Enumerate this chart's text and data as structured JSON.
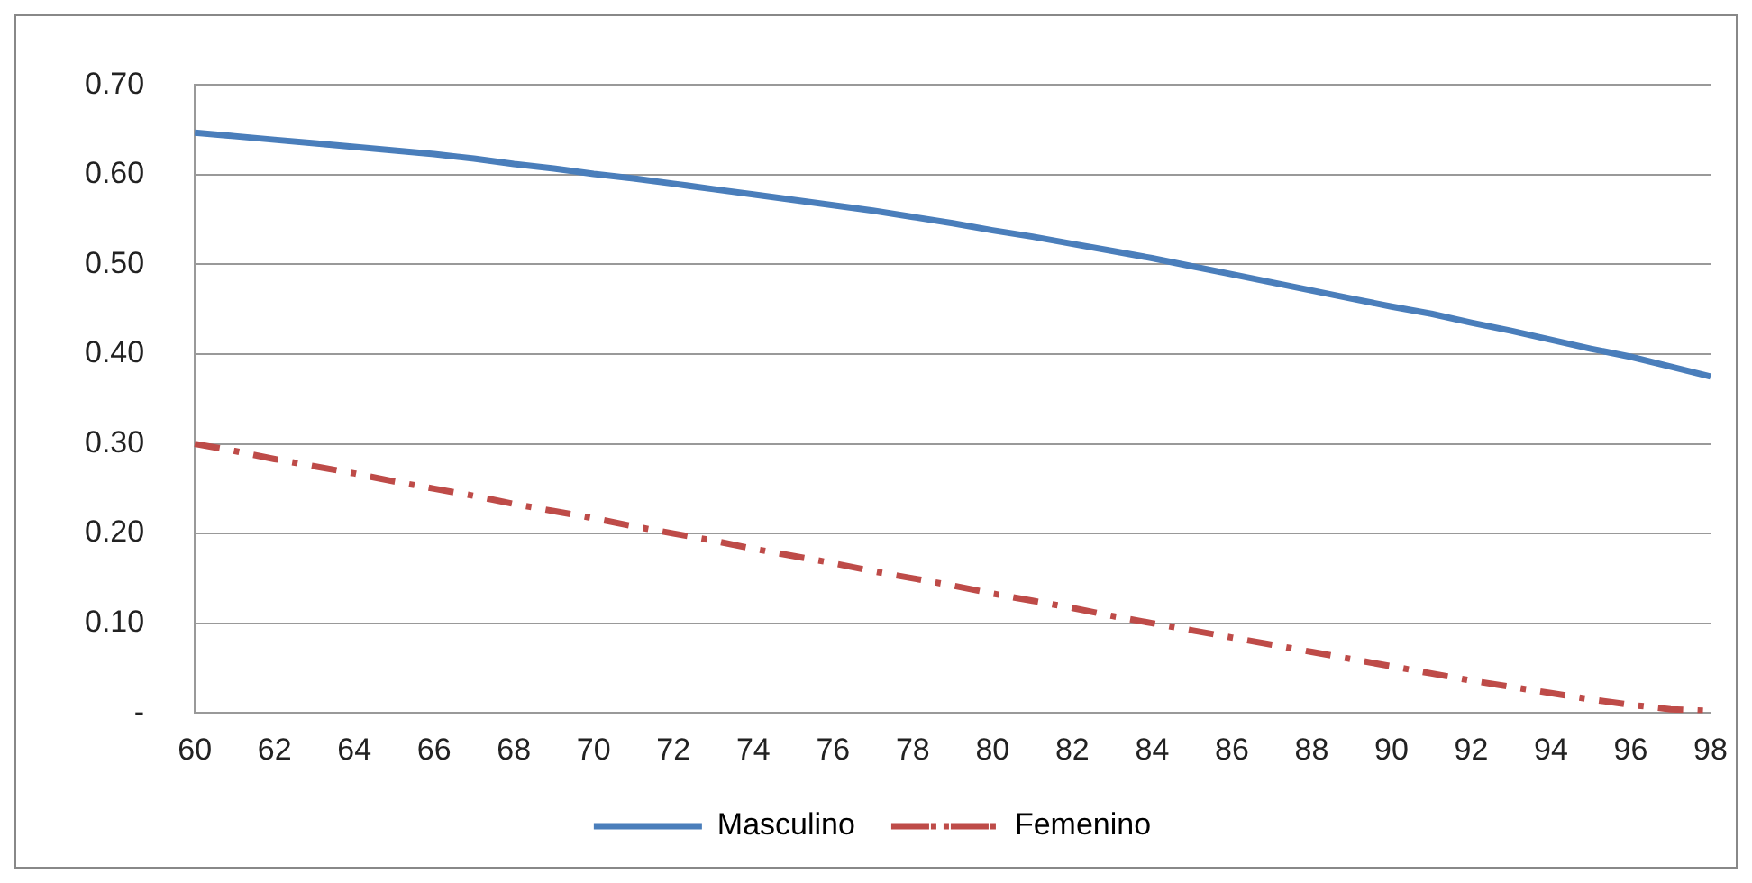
{
  "chart_data": {
    "type": "line",
    "categories": [
      "60",
      null,
      "62",
      null,
      "64",
      null,
      "66",
      null,
      "68",
      null,
      "70",
      null,
      "72",
      null,
      "74",
      null,
      "76",
      null,
      "78",
      null,
      "80",
      null,
      "82",
      null,
      "84",
      null,
      "86",
      null,
      "88",
      null,
      "90",
      null,
      "92",
      null,
      "94",
      null,
      "96",
      null,
      "98"
    ],
    "series": [
      {
        "name": "Masculino",
        "color": "#4a7ebb",
        "line_style": "solid",
        "values": [
          0.647,
          0.643,
          0.639,
          0.635,
          0.631,
          0.627,
          0.623,
          0.618,
          0.612,
          0.607,
          0.601,
          0.596,
          0.59,
          0.584,
          0.578,
          0.572,
          0.566,
          0.56,
          0.553,
          0.546,
          0.538,
          0.531,
          0.523,
          0.515,
          0.507,
          0.498,
          0.489,
          0.48,
          0.471,
          0.462,
          0.453,
          0.445,
          0.435,
          0.426,
          0.416,
          0.406,
          0.397,
          0.386,
          0.375
        ]
      },
      {
        "name": "Femenino",
        "color": "#be4b48",
        "line_style": "dashed",
        "values": [
          0.3,
          0.292,
          0.283,
          0.275,
          0.267,
          0.258,
          0.25,
          0.242,
          0.233,
          0.225,
          0.217,
          0.208,
          0.2,
          0.192,
          0.183,
          0.175,
          0.167,
          0.158,
          0.15,
          0.142,
          0.133,
          0.125,
          0.117,
          0.108,
          0.1,
          0.092,
          0.084,
          0.076,
          0.068,
          0.06,
          0.052,
          0.044,
          0.036,
          0.029,
          0.022,
          0.015,
          0.009,
          0.004,
          0.002
        ]
      }
    ],
    "ylim": [
      0,
      0.7
    ],
    "yticks": [
      {
        "value": 0,
        "label": "-"
      },
      {
        "value": 0.1,
        "label": "0.10"
      },
      {
        "value": 0.2,
        "label": "0.20"
      },
      {
        "value": 0.3,
        "label": "0.30"
      },
      {
        "value": 0.4,
        "label": "0.40"
      },
      {
        "value": 0.5,
        "label": "0.50"
      },
      {
        "value": 0.6,
        "label": "0.60"
      },
      {
        "value": 0.7,
        "label": "0.70"
      }
    ],
    "grid": "y",
    "legend": "bottom",
    "marker": "none"
  }
}
